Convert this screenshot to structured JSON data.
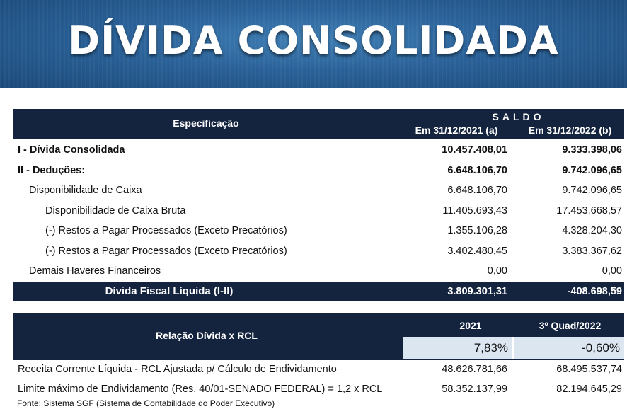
{
  "title": "DÍVIDA CONSOLIDADA",
  "table1": {
    "header": {
      "spec": "Especificação",
      "saldo": "SALDO",
      "col1": "Em 31/12/2021 (a)",
      "col2": "Em 31/12/2022 (b)"
    },
    "rows": [
      {
        "label": "I - Dívida Consolidada",
        "v1": "10.457.408,01",
        "v2": "9.333.398,06"
      },
      {
        "label": "II - Deduções:",
        "v1": "6.648.106,70",
        "v2": "9.742.096,65"
      },
      {
        "label": "Disponibilidade de Caixa",
        "v1": "6.648.106,70",
        "v2": "9.742.096,65"
      },
      {
        "label": "Disponibilidade de Caixa Bruta",
        "v1": "11.405.693,43",
        "v2": "17.453.668,57"
      },
      {
        "label": "(-) Restos a Pagar Processados (Exceto Precatórios)",
        "v1": "1.355.106,28",
        "v2": "4.328.204,30"
      },
      {
        "label": "(-) Restos a Pagar Processados (Exceto Precatórios)",
        "v1": "3.402.480,45",
        "v2": "3.383.367,62"
      },
      {
        "label": "Demais Haveres Financeiros",
        "v1": "0,00",
        "v2": "0,00"
      }
    ],
    "total": {
      "label": "Dívida Fiscal Líquida (I-II)",
      "v1": "3.809.301,31",
      "v2": "-408.698,59"
    }
  },
  "table2": {
    "header": {
      "label": "Relação Dívida x RCL",
      "col1": "2021",
      "col2": "3º Quad/2022"
    },
    "pct": {
      "v1": "7,83%",
      "v2": "-0,60%"
    },
    "rows": [
      {
        "label": "Receita Corrente Líquida - RCL  Ajustada p/ Cálculo de Endividamento",
        "v1": "48.626.781,66",
        "v2": "68.495.537,74"
      },
      {
        "label": "Limite máximo de Endividamento (Res. 40/01-SENADO FEDERAL) = 1,2 x RCL",
        "v1": "58.352.137,99",
        "v2": "82.194.645,29"
      }
    ]
  },
  "source": "Fonte: Sistema SGF (Sistema de Contabilidade do Poder Executivo)"
}
